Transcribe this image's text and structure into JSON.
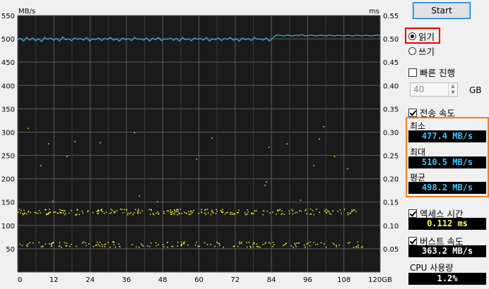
{
  "window": {
    "start_label": "Start"
  },
  "mode": {
    "read_label": "읽기",
    "write_label": "쓰기",
    "selected": "read"
  },
  "fast": {
    "label": "빠른 진행",
    "checked": false,
    "value": "40",
    "unit": "GB"
  },
  "transfer": {
    "label": "전송 속도",
    "checked": true,
    "min_label": "최소",
    "min_value": "477.4 MB/s",
    "max_label": "최대",
    "max_value": "510.5 MB/s",
    "avg_label": "평균",
    "avg_value": "498.2 MB/s"
  },
  "access": {
    "label": "엑세스 시간",
    "checked": true,
    "value": "0.112 ms"
  },
  "burst": {
    "label": "버스트 속도",
    "checked": true,
    "value": "363.2 MB/s"
  },
  "cpu": {
    "label": "CPU 사용량",
    "value": "1.2%"
  },
  "colors": {
    "speed_line": "#3ab0f0",
    "access_dots": "#f0f040",
    "plot_bg": "#1a1a1a"
  },
  "chart_data": {
    "type": "line",
    "ylabel_left": "MB/s",
    "ylabel_right": "ms",
    "xlim": [
      0,
      120
    ],
    "ylim_left": [
      0,
      550
    ],
    "ylim_right": [
      0,
      0.55
    ],
    "x_ticks": [
      "0",
      "12",
      "24",
      "36",
      "48",
      "60",
      "72",
      "84",
      "96",
      "108",
      "120GB"
    ],
    "y_ticks_left": [
      "550",
      "500",
      "450",
      "400",
      "350",
      "300",
      "250",
      "200",
      "150",
      "100",
      "50"
    ],
    "y_ticks_right": [
      "0.55",
      "0.50",
      "0.45",
      "0.40",
      "0.35",
      "0.30",
      "0.25",
      "0.20",
      "0.15",
      "0.10",
      "0.05"
    ],
    "grid": true,
    "series": [
      {
        "values_mbps": [
          498,
          501,
          495,
          503,
          497,
          502,
          496,
          500,
          494,
          503,
          499,
          502,
          497,
          501,
          495,
          504,
          498,
          500,
          496,
          502,
          499,
          501,
          497,
          503,
          495,
          500,
          498,
          502,
          496,
          501,
          499,
          503,
          497,
          500,
          495,
          502,
          498,
          501,
          496,
          503,
          499,
          500,
          497,
          502,
          495,
          501,
          498,
          503,
          496,
          500,
          499,
          502,
          497,
          501,
          495,
          503,
          498,
          500,
          496,
          502,
          499,
          501,
          497,
          503,
          495,
          500,
          498,
          502,
          496,
          501,
          499,
          503,
          497,
          500,
          495,
          502,
          498,
          501,
          496,
          503,
          499,
          500,
          497,
          502,
          495,
          501,
          507,
          508,
          507,
          506,
          508,
          507,
          506,
          508,
          507,
          509,
          506,
          507,
          508,
          507,
          506,
          508,
          507,
          506,
          508,
          507,
          506,
          508,
          507,
          506,
          508,
          507,
          506,
          508,
          507,
          506,
          508,
          507,
          506,
          507,
          508,
          507
        ]
      },
      {
        "access_clusters_ms": [
          0.13,
          0.06
        ]
      }
    ]
  }
}
